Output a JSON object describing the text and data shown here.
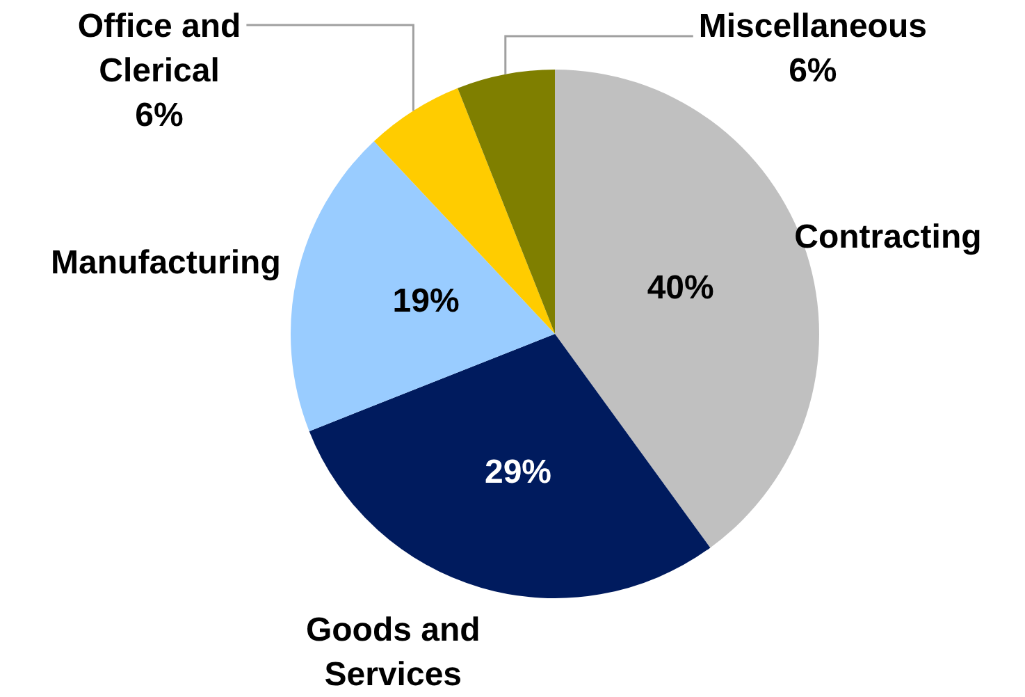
{
  "chart_data": {
    "type": "pie",
    "categories": [
      "Contracting",
      "Goods and Services",
      "Manufacturing",
      "Office and Clerical",
      "Miscellaneous"
    ],
    "values": [
      40,
      29,
      19,
      6,
      6
    ],
    "value_labels": [
      "40%",
      "29%",
      "19%",
      "6%",
      "6%"
    ],
    "colors": [
      "#c0c0c0",
      "#001b5e",
      "#99ccff",
      "#ffcc00",
      "#7f7f00"
    ],
    "legend": false
  }
}
